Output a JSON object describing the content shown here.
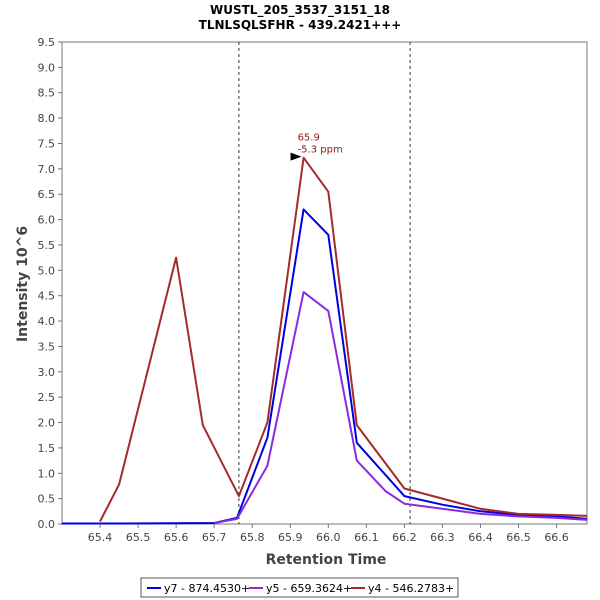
{
  "chart_data": {
    "type": "line",
    "title": "WUSTL_205_3537_3151_18",
    "subtitle": "TLNLSQLSFHR - 439.2421+++",
    "xlabel": "Retention Time",
    "ylabel": "Intensity 10^6",
    "xlim": [
      65.3,
      66.68
    ],
    "ylim": [
      0,
      9.5
    ],
    "xticks": [
      "65.4",
      "65.5",
      "65.6",
      "65.7",
      "65.8",
      "65.9",
      "66.0",
      "66.1",
      "66.2",
      "66.3",
      "66.4",
      "66.5",
      "66.6"
    ],
    "yticks": [
      "0.0",
      "0.5",
      "1.0",
      "1.5",
      "2.0",
      "2.5",
      "3.0",
      "3.5",
      "4.0",
      "4.5",
      "5.0",
      "5.5",
      "6.0",
      "6.5",
      "7.0",
      "7.5",
      "8.0",
      "8.5",
      "9.0",
      "9.5"
    ],
    "grid": false,
    "legend_position": "bottom",
    "boundaries": [
      65.765,
      66.215
    ],
    "annotation": {
      "x": 65.935,
      "y": 7.22,
      "line1": "65.9",
      "line2": "-5.3 ppm",
      "color": "#8B1A1A"
    },
    "series": [
      {
        "name": "y7 - 874.4530+",
        "color": "#0000e0",
        "x": [
          65.3,
          65.4,
          65.45,
          65.7,
          65.76,
          65.84,
          65.935,
          66.0,
          66.075,
          66.2,
          66.3,
          66.4,
          66.5,
          66.6,
          66.68
        ],
        "y": [
          0.01,
          0.01,
          0.01,
          0.02,
          0.12,
          1.7,
          6.2,
          5.7,
          1.6,
          0.55,
          0.38,
          0.25,
          0.18,
          0.15,
          0.1
        ]
      },
      {
        "name": "y5 - 659.3624+",
        "color": "#8a2be2",
        "x": [
          65.7,
          65.76,
          65.84,
          65.935,
          66.0,
          66.075,
          66.15,
          66.2,
          66.3,
          66.4,
          66.5,
          66.6,
          66.68
        ],
        "y": [
          0.02,
          0.1,
          1.15,
          4.57,
          4.2,
          1.25,
          0.65,
          0.4,
          0.3,
          0.2,
          0.15,
          0.12,
          0.08
        ]
      },
      {
        "name": "y4 - 546.2783+",
        "color": "#a52a2a",
        "x": [
          65.4,
          65.45,
          65.6,
          65.67,
          65.765,
          65.84,
          65.935,
          66.0,
          66.075,
          66.2,
          66.3,
          66.4,
          66.5,
          66.6,
          66.68
        ],
        "y": [
          0.05,
          0.78,
          5.25,
          1.95,
          0.55,
          2.0,
          7.22,
          6.55,
          1.95,
          0.7,
          0.5,
          0.3,
          0.2,
          0.18,
          0.16
        ]
      }
    ]
  }
}
